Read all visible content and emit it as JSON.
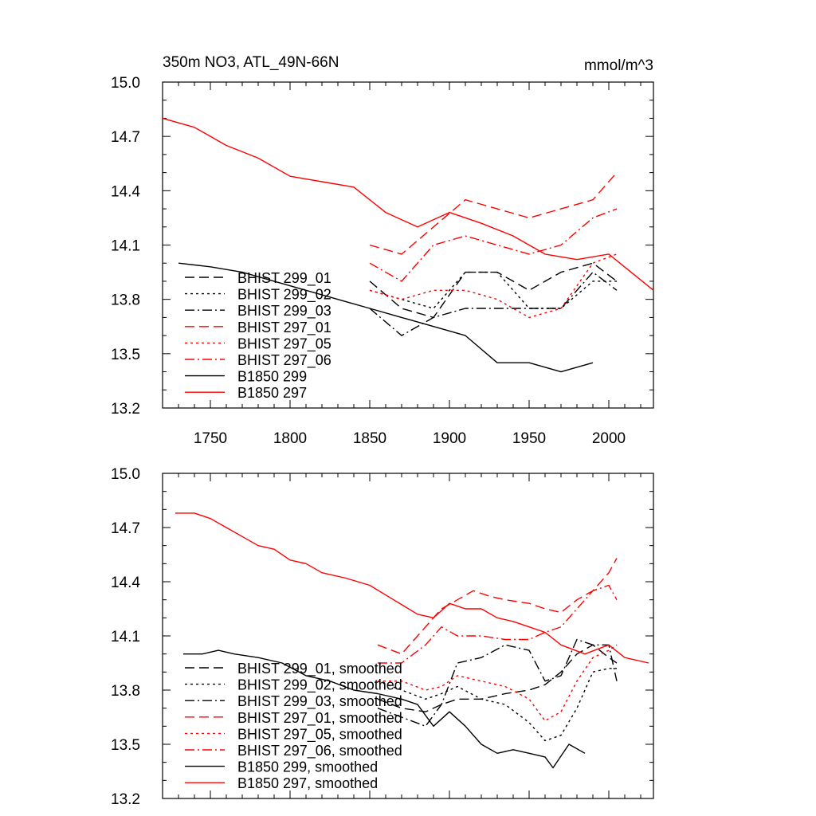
{
  "panels": [
    {
      "title": "350m NO3, ATL_49N-66N",
      "units": "mmol/m^3",
      "ylim": [
        13.2,
        15.0
      ],
      "xlim": [
        1720,
        2028
      ],
      "yticks": [
        "13.2",
        "13.5",
        "13.8",
        "14.1",
        "14.4",
        "14.7",
        "15.0"
      ],
      "xticks": [
        "1750",
        "1800",
        "1850",
        "1900",
        "1950",
        "2000"
      ],
      "legend": [
        "BHIST 299_01",
        "BHIST 299_02",
        "BHIST 299_03",
        "BHIST 297_01",
        "BHIST 297_05",
        "BHIST 297_06",
        "B1850 299",
        "B1850 297"
      ]
    },
    {
      "title": "",
      "units": "",
      "ylim": [
        13.2,
        15.0
      ],
      "xlim": [
        1720,
        2028
      ],
      "yticks": [
        "13.2",
        "13.5",
        "13.8",
        "14.1",
        "14.4",
        "14.7",
        "15.0"
      ],
      "xticks": [],
      "legend": [
        "BHIST 299_01, smoothed",
        "BHIST 299_02, smoothed",
        "BHIST 299_03, smoothed",
        "BHIST 297_01, smoothed",
        "BHIST 297_05, smoothed",
        "BHIST 297_06, smoothed",
        "B1850 299, smoothed",
        "B1850 297, smoothed"
      ]
    }
  ],
  "chart_data": [
    {
      "type": "line",
      "title": "350m NO3, ATL_49N-66N",
      "ylabel": "mmol/m^3",
      "xlim": [
        1720,
        2028
      ],
      "ylim": [
        13.2,
        15.0
      ],
      "series": [
        {
          "name": "BHIST 299_01",
          "color": "#000000",
          "dash": "dash",
          "x": [
            1850,
            1870,
            1890,
            1910,
            1930,
            1950,
            1970,
            1990,
            2005
          ],
          "values": [
            13.9,
            13.75,
            13.7,
            13.95,
            13.95,
            13.85,
            13.95,
            14.0,
            13.9
          ]
        },
        {
          "name": "BHIST 299_02",
          "color": "#000000",
          "dash": "dot",
          "x": [
            1850,
            1870,
            1890,
            1910,
            1930,
            1950,
            1970,
            1990,
            2005
          ],
          "values": [
            13.85,
            13.8,
            13.75,
            13.95,
            13.95,
            13.75,
            13.75,
            13.9,
            13.9
          ]
        },
        {
          "name": "BHIST 299_03",
          "color": "#000000",
          "dash": "dashdot",
          "x": [
            1850,
            1870,
            1890,
            1910,
            1930,
            1950,
            1970,
            1990,
            2005
          ],
          "values": [
            13.75,
            13.6,
            13.7,
            13.75,
            13.75,
            13.75,
            13.75,
            13.95,
            13.85
          ]
        },
        {
          "name": "BHIST 297_01",
          "color": "#ff0000",
          "dash": "dash",
          "x": [
            1850,
            1870,
            1890,
            1910,
            1930,
            1950,
            1970,
            1990,
            2005
          ],
          "values": [
            14.1,
            14.05,
            14.2,
            14.35,
            14.3,
            14.25,
            14.3,
            14.35,
            14.5
          ]
        },
        {
          "name": "BHIST 297_05",
          "color": "#ff0000",
          "dash": "dot",
          "x": [
            1850,
            1870,
            1890,
            1910,
            1930,
            1950,
            1970,
            1990,
            2005
          ],
          "values": [
            13.85,
            13.8,
            13.85,
            13.85,
            13.8,
            13.7,
            13.75,
            14.0,
            14.05
          ]
        },
        {
          "name": "BHIST 297_06",
          "color": "#ff0000",
          "dash": "dashdot",
          "x": [
            1850,
            1870,
            1890,
            1910,
            1930,
            1950,
            1970,
            1990,
            2005
          ],
          "values": [
            14.0,
            13.9,
            14.1,
            14.15,
            14.1,
            14.05,
            14.1,
            14.25,
            14.3
          ]
        },
        {
          "name": "B1850 299",
          "color": "#000000",
          "dash": "solid",
          "x": [
            1730,
            1750,
            1770,
            1790,
            1810,
            1830,
            1850,
            1870,
            1890,
            1910,
            1930,
            1950,
            1970,
            1990
          ],
          "values": [
            14.0,
            13.98,
            13.95,
            13.9,
            13.85,
            13.8,
            13.75,
            13.7,
            13.65,
            13.6,
            13.45,
            13.45,
            13.4,
            13.45
          ]
        },
        {
          "name": "B1850 297",
          "color": "#ff0000",
          "dash": "solid",
          "x": [
            1720,
            1740,
            1760,
            1780,
            1800,
            1820,
            1840,
            1860,
            1880,
            1900,
            1920,
            1940,
            1960,
            1980,
            2000,
            2028
          ],
          "values": [
            14.8,
            14.75,
            14.65,
            14.58,
            14.48,
            14.45,
            14.42,
            14.28,
            14.2,
            14.28,
            14.22,
            14.15,
            14.05,
            14.02,
            14.05,
            13.85
          ]
        }
      ]
    },
    {
      "type": "line",
      "title": "",
      "ylabel": "",
      "xlim": [
        1720,
        2028
      ],
      "ylim": [
        13.2,
        15.0
      ],
      "series": [
        {
          "name": "BHIST 299_01, smoothed",
          "color": "#000000",
          "dash": "dash",
          "x": [
            1855,
            1870,
            1885,
            1895,
            1905,
            1920,
            1935,
            1950,
            1960,
            1970,
            1980,
            1990,
            2000,
            2005
          ],
          "values": [
            13.75,
            13.7,
            13.68,
            13.72,
            13.75,
            13.75,
            13.78,
            13.8,
            13.83,
            13.9,
            14.0,
            14.05,
            13.98,
            13.95
          ]
        },
        {
          "name": "BHIST 299_02, smoothed",
          "color": "#000000",
          "dash": "dot",
          "x": [
            1855,
            1870,
            1885,
            1895,
            1905,
            1920,
            1935,
            1950,
            1960,
            1970,
            1980,
            1990,
            2000,
            2005
          ],
          "values": [
            13.85,
            13.8,
            13.75,
            13.78,
            13.82,
            13.75,
            13.72,
            13.62,
            13.52,
            13.55,
            13.7,
            13.9,
            13.92,
            13.92
          ]
        },
        {
          "name": "BHIST 299_03, smoothed",
          "color": "#000000",
          "dash": "dashdot",
          "x": [
            1855,
            1870,
            1885,
            1895,
            1905,
            1920,
            1935,
            1950,
            1960,
            1970,
            1980,
            1990,
            2000,
            2005
          ],
          "values": [
            13.7,
            13.65,
            13.6,
            13.72,
            13.95,
            13.98,
            14.05,
            14.02,
            13.85,
            13.88,
            14.08,
            14.05,
            14.05,
            13.85
          ]
        },
        {
          "name": "BHIST 297_01, smoothed",
          "color": "#ff0000",
          "dash": "dash",
          "x": [
            1855,
            1870,
            1885,
            1895,
            1905,
            1915,
            1925,
            1935,
            1950,
            1960,
            1970,
            1980,
            1990,
            2000,
            2005
          ],
          "values": [
            14.05,
            14.0,
            14.15,
            14.25,
            14.3,
            14.35,
            14.32,
            14.3,
            14.28,
            14.25,
            14.23,
            14.3,
            14.35,
            14.45,
            14.53
          ]
        },
        {
          "name": "BHIST 297_05, smoothed",
          "color": "#ff0000",
          "dash": "dot",
          "x": [
            1855,
            1870,
            1885,
            1895,
            1905,
            1920,
            1935,
            1950,
            1960,
            1970,
            1980,
            1990,
            2000,
            2005
          ],
          "values": [
            13.85,
            13.85,
            13.8,
            13.82,
            13.88,
            13.85,
            13.82,
            13.75,
            13.63,
            13.68,
            13.85,
            13.98,
            14.02,
            14.05
          ]
        },
        {
          "name": "BHIST 297_06, smoothed",
          "color": "#ff0000",
          "dash": "dashdot",
          "x": [
            1855,
            1870,
            1885,
            1895,
            1905,
            1920,
            1935,
            1950,
            1960,
            1970,
            1980,
            1990,
            2000,
            2005
          ],
          "values": [
            13.95,
            13.95,
            14.05,
            14.15,
            14.1,
            14.1,
            14.08,
            14.08,
            14.12,
            14.15,
            14.25,
            14.35,
            14.38,
            14.3
          ]
        },
        {
          "name": "B1850 299, smoothed",
          "color": "#000000",
          "dash": "solid",
          "x": [
            1733,
            1745,
            1755,
            1765,
            1780,
            1795,
            1810,
            1825,
            1840,
            1855,
            1870,
            1880,
            1890,
            1900,
            1910,
            1920,
            1930,
            1940,
            1950,
            1960,
            1965,
            1975,
            1985
          ],
          "values": [
            14.0,
            14.0,
            14.02,
            14.0,
            13.98,
            13.95,
            13.88,
            13.85,
            13.8,
            13.78,
            13.75,
            13.72,
            13.6,
            13.68,
            13.6,
            13.5,
            13.45,
            13.47,
            13.45,
            13.43,
            13.37,
            13.5,
            13.45
          ]
        },
        {
          "name": "B1850 297, smoothed",
          "color": "#ff0000",
          "dash": "solid",
          "x": [
            1728,
            1740,
            1750,
            1760,
            1770,
            1780,
            1790,
            1800,
            1810,
            1820,
            1835,
            1850,
            1865,
            1880,
            1890,
            1900,
            1910,
            1920,
            1930,
            1940,
            1950,
            1960,
            1970,
            1985,
            2000,
            2010,
            2025
          ],
          "values": [
            14.78,
            14.78,
            14.75,
            14.7,
            14.65,
            14.6,
            14.58,
            14.52,
            14.5,
            14.45,
            14.42,
            14.38,
            14.3,
            14.22,
            14.2,
            14.28,
            14.25,
            14.25,
            14.2,
            14.18,
            14.15,
            14.12,
            14.05,
            14.0,
            14.05,
            13.98,
            13.95
          ]
        }
      ]
    }
  ]
}
